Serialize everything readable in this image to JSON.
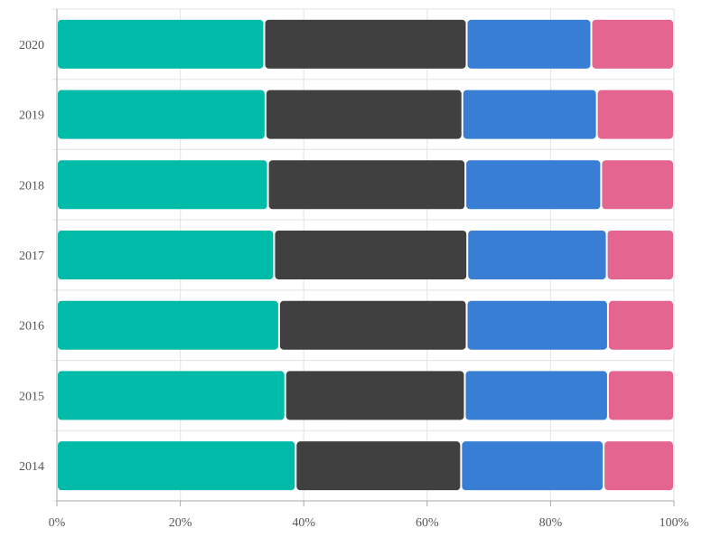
{
  "chart_data": {
    "type": "bar",
    "orientation": "horizontal",
    "stacked": "percent",
    "categories": [
      "2014",
      "2015",
      "2016",
      "2017",
      "2018",
      "2019",
      "2020"
    ],
    "series": [
      {
        "color": "#00bba8",
        "values": [
          38.7,
          37.0,
          36.0,
          35.2,
          34.2,
          33.8,
          33.6
        ]
      },
      {
        "color": "#404040",
        "values": [
          26.8,
          29.1,
          30.4,
          31.3,
          32.0,
          31.9,
          32.8
        ]
      },
      {
        "color": "#377ed4",
        "values": [
          23.1,
          23.2,
          22.9,
          22.6,
          22.0,
          21.8,
          20.2
        ]
      },
      {
        "color": "#e4658f",
        "values": [
          11.4,
          10.7,
          10.7,
          10.9,
          11.8,
          12.5,
          13.4
        ]
      }
    ],
    "xticks": [
      "0%",
      "20%",
      "40%",
      "60%",
      "80%",
      "100%"
    ],
    "xlim": [
      0,
      100
    ],
    "title": "",
    "xlabel": "",
    "ylabel": "",
    "grid": true,
    "legend": "none"
  }
}
